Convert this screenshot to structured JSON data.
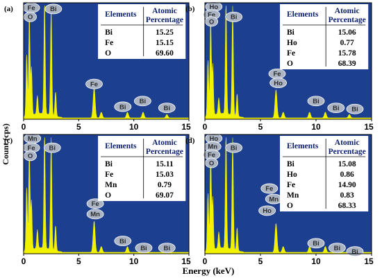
{
  "figure": {
    "ylabel": "Count (cps)",
    "xlabel": "Energy (keV)"
  },
  "colors": {
    "plot_bg": "#1d3f8f",
    "spectrum": "#f2f200",
    "peak_bubble": "#aab4c4",
    "table_bg": "#ffffff"
  },
  "chart_data": [
    {
      "type": "area",
      "panel": "(a)",
      "xlim": [
        0,
        15
      ],
      "xticks": [
        0,
        5,
        10,
        15
      ],
      "table": {
        "header_left": "Elements",
        "header_right_1": "Atomic",
        "header_right_2": "Percentage",
        "rows": [
          {
            "element": "Bi",
            "value": "15.25"
          },
          {
            "element": "Fe",
            "value": "15.15"
          },
          {
            "element": "O",
            "value": "69.60"
          }
        ]
      },
      "peaks": [
        {
          "x": 0.28,
          "y": 0.55
        },
        {
          "x": 0.52,
          "y": 0.88
        },
        {
          "x": 0.71,
          "y": 0.42
        },
        {
          "x": 1.25,
          "y": 0.16
        },
        {
          "x": 1.9,
          "y": 0.99
        },
        {
          "x": 2.5,
          "y": 0.96
        },
        {
          "x": 2.9,
          "y": 0.22
        },
        {
          "x": 6.4,
          "y": 0.27
        },
        {
          "x": 7.05,
          "y": 0.05
        },
        {
          "x": 9.42,
          "y": 0.05
        },
        {
          "x": 10.84,
          "y": 0.05
        },
        {
          "x": 13.0,
          "y": 0.03
        }
      ],
      "labels": [
        {
          "text": "Fe",
          "x": 0.7,
          "y": 0.98
        },
        {
          "text": "O",
          "x": 0.6,
          "y": 0.9
        },
        {
          "text": "Bi",
          "x": 2.7,
          "y": 0.97
        },
        {
          "text": "Fe",
          "x": 6.4,
          "y": 0.31
        },
        {
          "text": "Bi",
          "x": 9.0,
          "y": 0.11
        },
        {
          "text": "Bi",
          "x": 10.8,
          "y": 0.16
        },
        {
          "text": "Bi",
          "x": 13.0,
          "y": 0.1
        }
      ]
    },
    {
      "type": "area",
      "panel": "(b)",
      "xlim": [
        0,
        15
      ],
      "xticks": [
        0,
        5,
        10,
        15
      ],
      "table": {
        "header_left": "Elements",
        "header_right_1": "Atomic",
        "header_right_2": "Percentage",
        "rows": [
          {
            "element": "Bi",
            "value": "15.06"
          },
          {
            "element": "Ho",
            "value": "0.77"
          },
          {
            "element": "Fe",
            "value": "15.78"
          },
          {
            "element": "O",
            "value": "68.39"
          }
        ]
      },
      "peaks": [
        {
          "x": 0.28,
          "y": 0.5
        },
        {
          "x": 0.52,
          "y": 0.86
        },
        {
          "x": 0.71,
          "y": 0.45
        },
        {
          "x": 1.25,
          "y": 0.14
        },
        {
          "x": 1.9,
          "y": 0.99
        },
        {
          "x": 2.5,
          "y": 0.96
        },
        {
          "x": 2.9,
          "y": 0.2
        },
        {
          "x": 6.4,
          "y": 0.25
        },
        {
          "x": 7.05,
          "y": 0.05
        },
        {
          "x": 9.42,
          "y": 0.05
        },
        {
          "x": 10.84,
          "y": 0.05
        },
        {
          "x": 13.0,
          "y": 0.03
        }
      ],
      "labels": [
        {
          "text": "Ho",
          "x": 0.8,
          "y": 0.99
        },
        {
          "text": "Fe",
          "x": 0.6,
          "y": 0.92
        },
        {
          "text": "O",
          "x": 0.6,
          "y": 0.86
        },
        {
          "text": "Bi",
          "x": 2.6,
          "y": 0.9
        },
        {
          "text": "Fe",
          "x": 6.5,
          "y": 0.4
        },
        {
          "text": "Ho",
          "x": 6.6,
          "y": 0.32
        },
        {
          "text": "Bi",
          "x": 10.0,
          "y": 0.16
        },
        {
          "text": "Bi",
          "x": 11.8,
          "y": 0.1
        },
        {
          "text": "Bi",
          "x": 13.5,
          "y": 0.09
        }
      ]
    },
    {
      "type": "area",
      "panel": "(c)",
      "xlim": [
        0,
        15
      ],
      "xticks": [
        0,
        5,
        10,
        15
      ],
      "table": {
        "header_left": "Elements",
        "header_right_1": "Atomic",
        "header_right_2": "Percentage",
        "rows": [
          {
            "element": "Bi",
            "value": "15.11"
          },
          {
            "element": "Fe",
            "value": "15.03"
          },
          {
            "element": "Mn",
            "value": "0.79"
          },
          {
            "element": "O",
            "value": "69.07"
          }
        ]
      },
      "peaks": [
        {
          "x": 0.28,
          "y": 0.55
        },
        {
          "x": 0.52,
          "y": 0.88
        },
        {
          "x": 0.71,
          "y": 0.42
        },
        {
          "x": 1.25,
          "y": 0.16
        },
        {
          "x": 1.9,
          "y": 0.99
        },
        {
          "x": 2.5,
          "y": 0.96
        },
        {
          "x": 2.9,
          "y": 0.22
        },
        {
          "x": 6.4,
          "y": 0.27
        },
        {
          "x": 7.05,
          "y": 0.05
        },
        {
          "x": 9.42,
          "y": 0.05
        },
        {
          "x": 10.84,
          "y": 0.05
        },
        {
          "x": 13.0,
          "y": 0.03
        }
      ],
      "labels": [
        {
          "text": "Mn",
          "x": 0.8,
          "y": 0.99
        },
        {
          "text": "Fe",
          "x": 0.7,
          "y": 0.91
        },
        {
          "text": "O",
          "x": 0.6,
          "y": 0.84
        },
        {
          "text": "Bi",
          "x": 2.6,
          "y": 0.91
        },
        {
          "text": "Fe",
          "x": 6.5,
          "y": 0.43
        },
        {
          "text": "Mn",
          "x": 6.5,
          "y": 0.34
        },
        {
          "text": "Bi",
          "x": 9.0,
          "y": 0.11
        },
        {
          "text": "Bi",
          "x": 10.9,
          "y": 0.05
        },
        {
          "text": "Bi",
          "x": 13.0,
          "y": 0.05
        }
      ]
    },
    {
      "type": "area",
      "panel": "(d)",
      "xlim": [
        0,
        15
      ],
      "xticks": [
        0,
        5,
        10,
        15
      ],
      "table": {
        "header_left": "Elements",
        "header_right_1": "Atomic",
        "header_right_2": "Percentage",
        "rows": [
          {
            "element": "Bi",
            "value": "15.08"
          },
          {
            "element": "Ho",
            "value": "0.86"
          },
          {
            "element": "Fe",
            "value": "14.90"
          },
          {
            "element": "Mn",
            "value": "0.83"
          },
          {
            "element": "O",
            "value": "68.33"
          }
        ]
      },
      "peaks": [
        {
          "x": 0.28,
          "y": 0.5
        },
        {
          "x": 0.52,
          "y": 0.86
        },
        {
          "x": 0.71,
          "y": 0.45
        },
        {
          "x": 1.25,
          "y": 0.14
        },
        {
          "x": 1.9,
          "y": 0.99
        },
        {
          "x": 2.5,
          "y": 0.96
        },
        {
          "x": 2.9,
          "y": 0.2
        },
        {
          "x": 6.4,
          "y": 0.25
        },
        {
          "x": 7.05,
          "y": 0.05
        },
        {
          "x": 9.42,
          "y": 0.05
        },
        {
          "x": 10.84,
          "y": 0.05
        },
        {
          "x": 13.0,
          "y": 0.03
        }
      ],
      "labels": [
        {
          "text": "Ho",
          "x": 0.8,
          "y": 0.99
        },
        {
          "text": "Mn",
          "x": 0.7,
          "y": 0.92
        },
        {
          "text": "Fe",
          "x": 0.6,
          "y": 0.85
        },
        {
          "text": "O",
          "x": 0.6,
          "y": 0.78
        },
        {
          "text": "Bi",
          "x": 2.6,
          "y": 0.91
        },
        {
          "text": "Fe",
          "x": 5.8,
          "y": 0.56
        },
        {
          "text": "Mn",
          "x": 6.2,
          "y": 0.47
        },
        {
          "text": "Ho",
          "x": 5.6,
          "y": 0.37
        },
        {
          "text": "Bi",
          "x": 10.0,
          "y": 0.09
        },
        {
          "text": "Bi",
          "x": 11.9,
          "y": 0.05
        },
        {
          "text": "Bi",
          "x": 13.5,
          "y": 0.02
        }
      ]
    }
  ]
}
